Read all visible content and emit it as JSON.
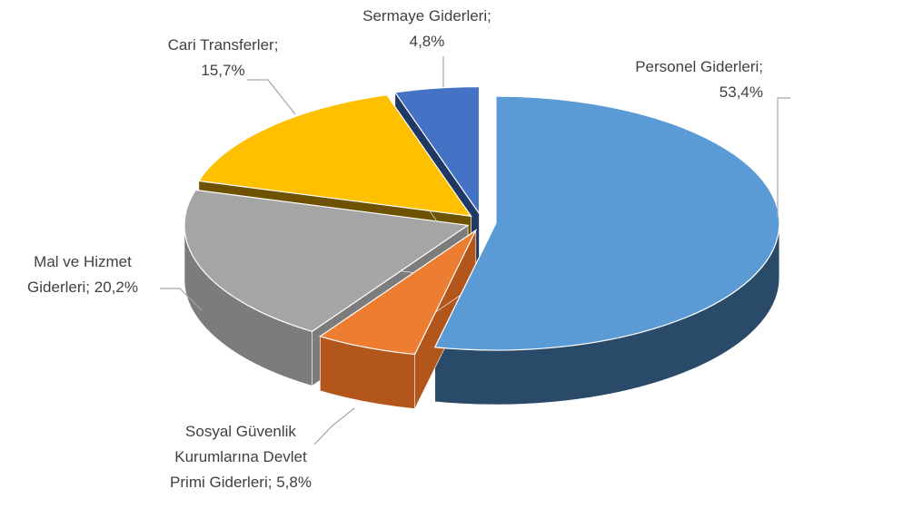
{
  "chart_data": {
    "type": "pie3d",
    "categories": [
      "Personel Giderleri",
      "Sosyal Güvenlik Kurumlarına Devlet Primi Giderleri",
      "Mal ve Hizmet Giderleri",
      "Cari Transferler",
      "Sermaye Giderleri"
    ],
    "values": [
      53.4,
      5.8,
      20.2,
      15.7,
      4.8
    ],
    "value_labels": [
      "53,4%",
      "5,8%",
      "20,2%",
      "15,7%",
      "4,8%"
    ],
    "label_separator": ";",
    "colors": [
      "#5b9bd5",
      "#ed7d31",
      "#a5a5a5",
      "#ffc000",
      "#4472c4"
    ],
    "side_colors": [
      "#2a4a6a",
      "#b3561c",
      "#7c7c7c",
      "#6e5200",
      "#1f3864"
    ]
  }
}
